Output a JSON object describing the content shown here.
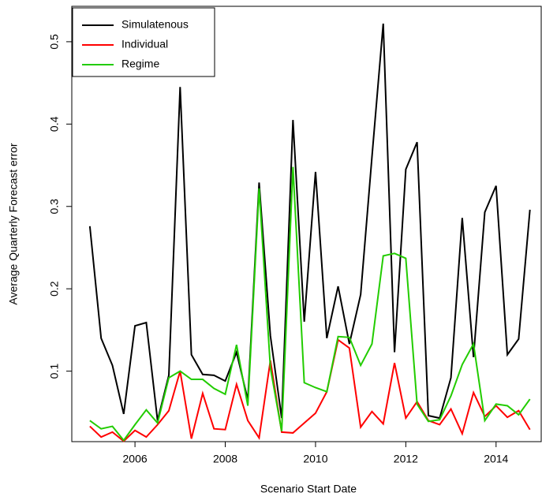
{
  "chart_data": {
    "type": "line",
    "xlabel": "Scenario Start Date",
    "ylabel": "Average Quarterly Forecast error",
    "x": [
      2005,
      2005.25,
      2005.5,
      2005.75,
      2006,
      2006.25,
      2006.5,
      2006.75,
      2007,
      2007.25,
      2007.5,
      2007.75,
      2008,
      2008.25,
      2008.5,
      2008.75,
      2009,
      2009.25,
      2009.5,
      2009.75,
      2010,
      2010.25,
      2010.5,
      2010.75,
      2011,
      2011.25,
      2011.5,
      2011.75,
      2012,
      2012.25,
      2012.5,
      2012.75,
      2013,
      2013.25,
      2013.5,
      2013.75,
      2014,
      2014.25,
      2014.5,
      2014.75
    ],
    "series": [
      {
        "name": "Simulatenous",
        "color": "#000000",
        "values": [
          0.276,
          0.14,
          0.107,
          0.048,
          0.155,
          0.159,
          0.04,
          0.095,
          0.445,
          0.12,
          0.096,
          0.095,
          0.088,
          0.123,
          0.065,
          0.329,
          0.143,
          0.043,
          0.405,
          0.16,
          0.342,
          0.14,
          0.203,
          0.133,
          0.193,
          0.36,
          0.522,
          0.123,
          0.345,
          0.378,
          0.046,
          0.043,
          0.092,
          0.286,
          0.117,
          0.293,
          0.325,
          0.12,
          0.139,
          0.296
        ]
      },
      {
        "name": "Individual",
        "color": "#ff0000",
        "values": [
          0.033,
          0.02,
          0.026,
          0.015,
          0.028,
          0.02,
          0.035,
          0.052,
          0.1,
          0.018,
          0.073,
          0.03,
          0.029,
          0.084,
          0.04,
          0.019,
          0.113,
          0.026,
          0.025,
          0.037,
          0.049,
          0.075,
          0.138,
          0.128,
          0.032,
          0.051,
          0.036,
          0.11,
          0.043,
          0.063,
          0.04,
          0.035,
          0.054,
          0.024,
          0.074,
          0.045,
          0.058,
          0.044,
          0.052,
          0.029
        ]
      },
      {
        "name": "Regime",
        "color": "#22cc00",
        "values": [
          0.04,
          0.03,
          0.033,
          0.016,
          0.035,
          0.053,
          0.037,
          0.092,
          0.1,
          0.09,
          0.09,
          0.079,
          0.072,
          0.132,
          0.058,
          0.322,
          0.104,
          0.027,
          0.348,
          0.086,
          0.08,
          0.075,
          0.142,
          0.141,
          0.107,
          0.133,
          0.24,
          0.243,
          0.237,
          0.06,
          0.039,
          0.041,
          0.07,
          0.108,
          0.133,
          0.04,
          0.06,
          0.058,
          0.047,
          0.066
        ]
      }
    ],
    "xlim": [
      2004.6,
      2015.0
    ],
    "ylim": [
      0.0144,
      0.543
    ],
    "xticks": [
      2006,
      2008,
      2010,
      2012,
      2014
    ],
    "yticks": [
      0.1,
      0.2,
      0.3,
      0.4,
      0.5
    ],
    "legend": "top-left"
  }
}
